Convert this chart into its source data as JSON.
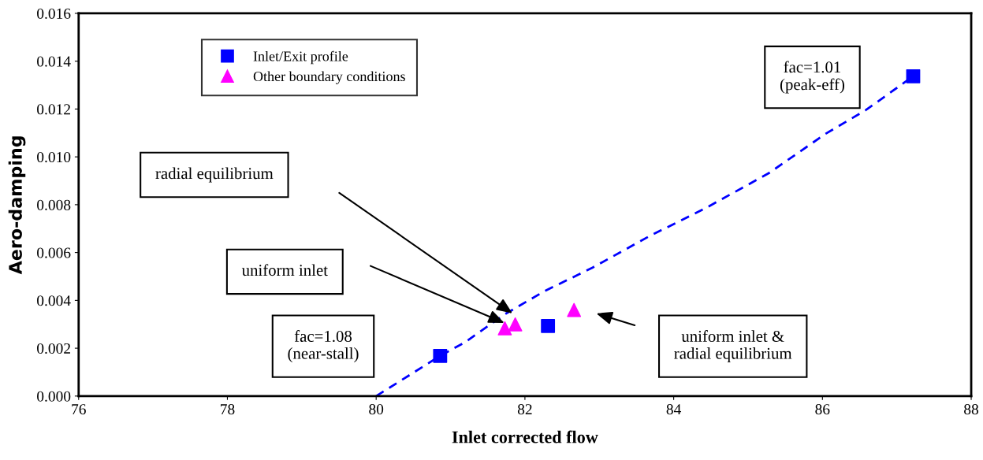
{
  "chart_data": {
    "type": "scatter",
    "xlabel": "Inlet corrected flow",
    "ylabel": "Aero-damping",
    "xlim": [
      76,
      88
    ],
    "xticks": [
      76,
      78,
      80,
      82,
      84,
      86,
      88
    ],
    "ylim": [
      0,
      0.016
    ],
    "yticks": [
      {
        "value": 0,
        "label": "0.000"
      },
      {
        "value": 0.002,
        "label": "0.002"
      },
      {
        "value": 0.004,
        "label": "0.004"
      },
      {
        "value": 0.006,
        "label": "0.006"
      },
      {
        "value": 0.008,
        "label": "0.008"
      },
      {
        "value": 0.01,
        "label": "0.010"
      },
      {
        "value": 0.012,
        "label": "0.012"
      },
      {
        "value": 0.014,
        "label": "0.014"
      },
      {
        "value": 0.016,
        "label": "0.016"
      }
    ],
    "series": [
      {
        "name": "Inlet/Exit profile",
        "color": "#0000ff",
        "marker": "square",
        "x": [
          80.86,
          82.31,
          87.22
        ],
        "values": [
          0.00168,
          0.00293,
          0.01337
        ]
      },
      {
        "name": "Other boundary conditions",
        "color": "#ff00ff",
        "marker": "triangle",
        "x": [
          81.73,
          81.87,
          82.66
        ],
        "values": [
          0.00283,
          0.003,
          0.0036
        ]
      },
      {
        "type": "line",
        "color": "#0000ff",
        "line_style": "dashed",
        "marker": "none",
        "x": [
          80.0,
          80.86,
          81.19,
          81.73,
          82.26,
          82.91,
          83.67,
          84.42,
          85.28,
          86.04,
          86.58,
          87.22
        ],
        "values": [
          0.0,
          0.00168,
          0.00224,
          0.00342,
          0.00438,
          0.00537,
          0.00668,
          0.00784,
          0.00932,
          0.01096,
          0.01195,
          0.01337
        ]
      }
    ],
    "annotations": [
      "radial equilibrium",
      "uniform inlet",
      "uniform inlet &\nradial equilibrium",
      "fac=1.08\n(near-stall)",
      "fac=1.01\n(peak-eff)"
    ],
    "legend": "top left",
    "grid": false
  }
}
